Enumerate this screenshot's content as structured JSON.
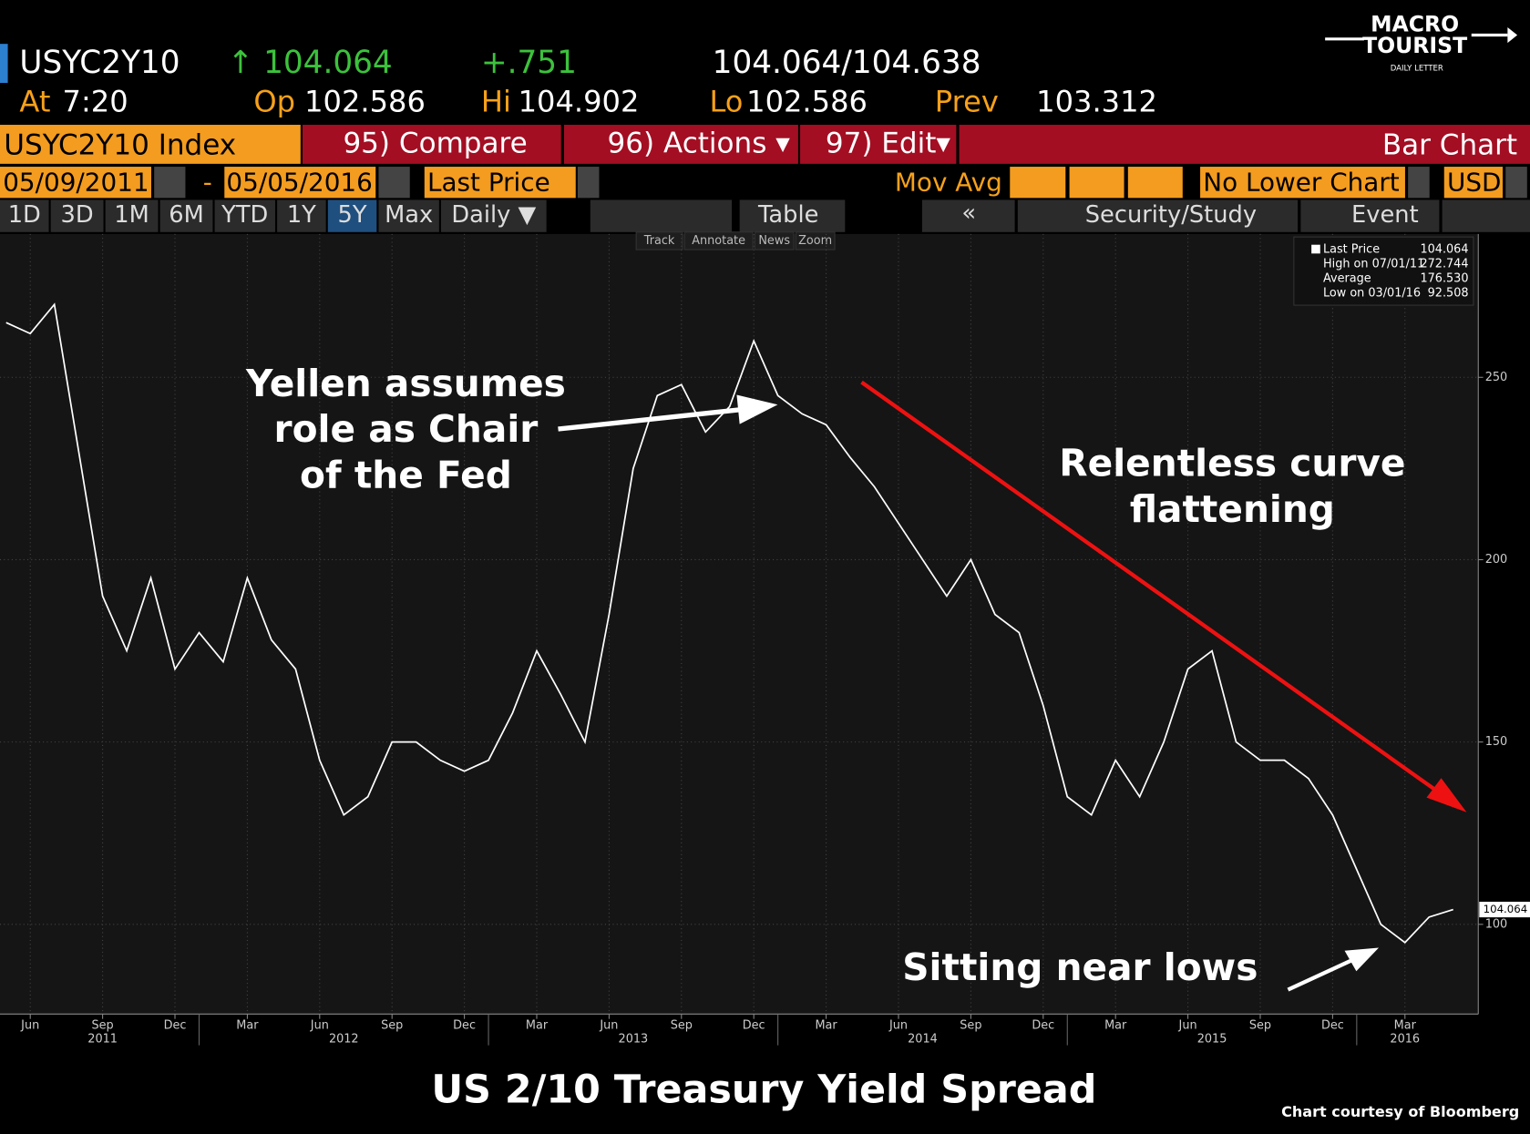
{
  "header": {
    "ticker": "USYC2Y10",
    "last": "↑ 104.064",
    "change": "+.751",
    "bid_ask": "104.064/104.638",
    "at_label": "At",
    "at_value": "7:20",
    "op_label": "Op",
    "op_value": "102.586",
    "hi_label": "Hi",
    "hi_value": "104.902",
    "lo_label": "Lo",
    "lo_value": "102.586",
    "prev_label": "Prev",
    "prev_value": "103.312"
  },
  "toolbar": {
    "security": "USYC2Y10 Index",
    "compare": "95) Compare",
    "actions": "96) Actions ▾",
    "edit": "97) Edit▾",
    "chart_kind": "Bar Chart",
    "start_date": "05/09/2011",
    "dash": "-",
    "end_date": "05/05/2016",
    "field": "Last Price",
    "mov_avg": "Mov Avg",
    "lower_chart": "No Lower Chart",
    "currency": "USD",
    "periods": [
      "1D",
      "3D",
      "1M",
      "6M",
      "YTD",
      "1Y",
      "5Y",
      "Max",
      "Daily ▼"
    ],
    "table": "Table",
    "collapse": "«",
    "study": "Security/Study",
    "event": "Event",
    "tools": [
      "Track",
      "Annotate",
      "News",
      "Zoom"
    ]
  },
  "chart_data": {
    "type": "line",
    "title": "US 2/10 Treasury Yield Spread",
    "x": [
      "2011-05",
      "2011-06",
      "2011-07",
      "2011-08",
      "2011-09",
      "2011-10",
      "2011-11",
      "2011-12",
      "2012-01",
      "2012-02",
      "2012-03",
      "2012-04",
      "2012-05",
      "2012-06",
      "2012-07",
      "2012-08",
      "2012-09",
      "2012-10",
      "2012-11",
      "2012-12",
      "2013-01",
      "2013-02",
      "2013-03",
      "2013-04",
      "2013-05",
      "2013-06",
      "2013-07",
      "2013-08",
      "2013-09",
      "2013-10",
      "2013-11",
      "2013-12",
      "2014-01",
      "2014-02",
      "2014-03",
      "2014-04",
      "2014-05",
      "2014-06",
      "2014-07",
      "2014-08",
      "2014-09",
      "2014-10",
      "2014-11",
      "2014-12",
      "2015-01",
      "2015-02",
      "2015-03",
      "2015-04",
      "2015-05",
      "2015-06",
      "2015-07",
      "2015-08",
      "2015-09",
      "2015-10",
      "2015-11",
      "2015-12",
      "2016-01",
      "2016-02",
      "2016-03",
      "2016-04",
      "2016-05"
    ],
    "series": [
      {
        "name": "Last Price",
        "color": "#ffffff",
        "values": [
          265,
          262,
          270,
          230,
          190,
          175,
          195,
          170,
          180,
          172,
          195,
          178,
          170,
          145,
          130,
          135,
          150,
          150,
          145,
          142,
          145,
          158,
          175,
          163,
          150,
          185,
          225,
          245,
          248,
          235,
          242,
          260,
          245,
          240,
          237,
          228,
          220,
          210,
          200,
          190,
          200,
          185,
          180,
          160,
          135,
          130,
          145,
          135,
          150,
          170,
          175,
          150,
          145,
          145,
          140,
          130,
          115,
          100,
          95,
          102,
          104.064
        ]
      }
    ],
    "xlim": [
      "2011-05",
      "2016-06"
    ],
    "ylim": [
      75.4,
      289.3
    ],
    "yticks": [
      100,
      150,
      200,
      250
    ],
    "xticks": [
      {
        "value": "2011-06",
        "label": "Jun"
      },
      {
        "value": "2011-09",
        "label": "Sep"
      },
      {
        "value": "2011-12",
        "label": "Dec"
      },
      {
        "value": "2012-03",
        "label": "Mar"
      },
      {
        "value": "2012-06",
        "label": "Jun"
      },
      {
        "value": "2012-09",
        "label": "Sep"
      },
      {
        "value": "2012-12",
        "label": "Dec"
      },
      {
        "value": "2013-03",
        "label": "Mar"
      },
      {
        "value": "2013-06",
        "label": "Jun"
      },
      {
        "value": "2013-09",
        "label": "Sep"
      },
      {
        "value": "2013-12",
        "label": "Dec"
      },
      {
        "value": "2014-03",
        "label": "Mar"
      },
      {
        "value": "2014-06",
        "label": "Jun"
      },
      {
        "value": "2014-09",
        "label": "Sep"
      },
      {
        "value": "2014-12",
        "label": "Dec"
      },
      {
        "value": "2015-03",
        "label": "Mar"
      },
      {
        "value": "2015-06",
        "label": "Jun"
      },
      {
        "value": "2015-09",
        "label": "Sep"
      },
      {
        "value": "2015-12",
        "label": "Dec"
      },
      {
        "value": "2016-03",
        "label": "Mar"
      }
    ],
    "year_labels": [
      {
        "value": "2011-09",
        "label": "2011"
      },
      {
        "value": "2012-07",
        "label": "2012"
      },
      {
        "value": "2013-07",
        "label": "2013"
      },
      {
        "value": "2014-07",
        "label": "2014"
      },
      {
        "value": "2015-07",
        "label": "2015"
      },
      {
        "value": "2016-03",
        "label": "2016"
      }
    ],
    "grid": true,
    "last_value_label": "104.064",
    "legend": {
      "rows": [
        {
          "label": "Last Price",
          "value": "104.064"
        },
        {
          "label": "High on 07/01/11",
          "value": "272.744"
        },
        {
          "label": "Average",
          "value": "176.530"
        },
        {
          "label": "Low on 03/01/16",
          "value": "92.508"
        }
      ]
    },
    "annotations": [
      {
        "lines": [
          "Yellen assumes",
          "role as Chair",
          "of the Fed"
        ]
      },
      {
        "lines": [
          "Relentless curve",
          "flattening"
        ]
      },
      {
        "lines": [
          "Sitting near lows"
        ]
      }
    ]
  },
  "credit": "Chart courtesy of Bloomberg",
  "logo": {
    "top": "MACRO",
    "bottom": "TOURIST",
    "sub": "DAILY LETTER"
  }
}
